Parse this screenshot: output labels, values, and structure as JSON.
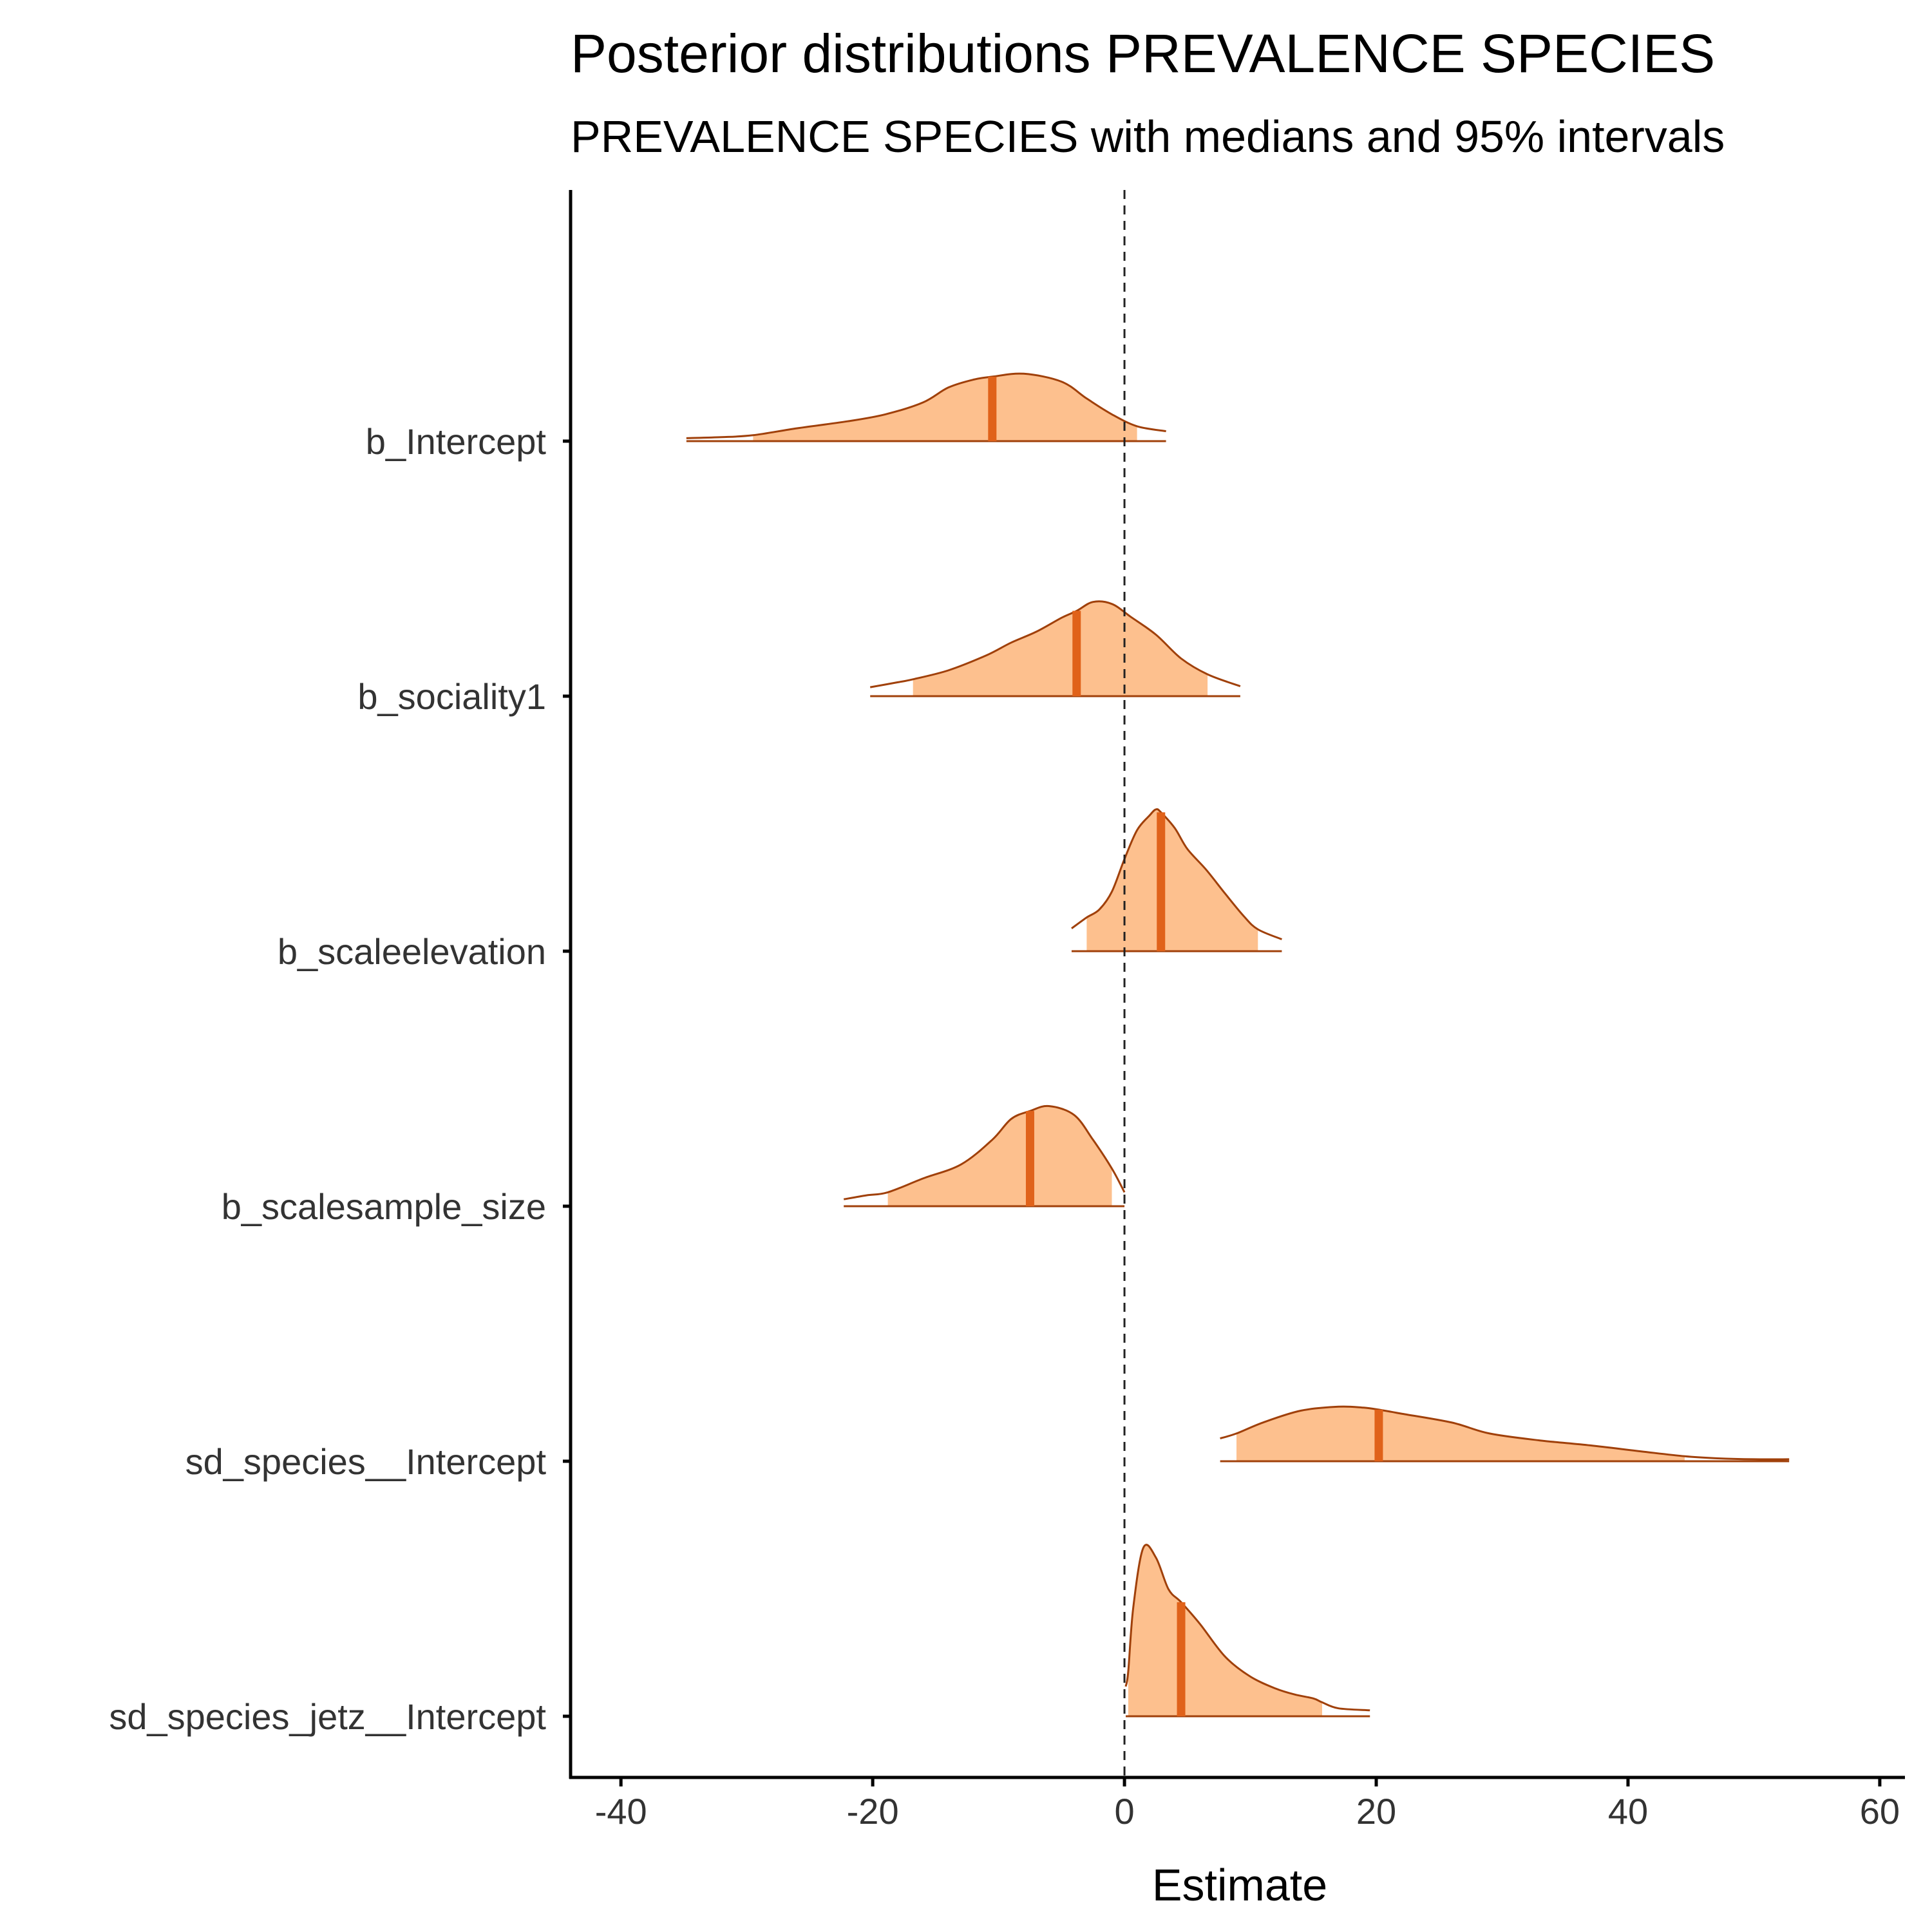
{
  "chart_data": {
    "type": "density_ridge",
    "title": "Posterior distributions PREVALENCE SPECIES",
    "subtitle": "PREVALENCE SPECIES with medians and 95% intervals",
    "xlabel": "Estimate",
    "ylabel": "",
    "xlim": [
      -44,
      62
    ],
    "xticks": [
      -40,
      -20,
      0,
      20,
      40,
      60
    ],
    "xtick_labels": [
      "-40",
      "-20",
      "0",
      "20",
      "40",
      "60"
    ],
    "reference_line_x": 0,
    "colors": {
      "fill": "#fdc08e",
      "outline": "#a0400a",
      "median": "#e0621a",
      "reference": "#222222",
      "axis": "#000000"
    },
    "parameters": [
      {
        "name": "b_Intercept",
        "median": -10.5,
        "ci95": [
          -29.5,
          1.0
        ],
        "range": [
          -34.8,
          3.3
        ],
        "density": [
          [
            -34.8,
            0.03
          ],
          [
            -32,
            0.04
          ],
          [
            -29.5,
            0.06
          ],
          [
            -26,
            0.13
          ],
          [
            -22,
            0.2
          ],
          [
            -19,
            0.27
          ],
          [
            -16,
            0.39
          ],
          [
            -14,
            0.54
          ],
          [
            -12,
            0.62
          ],
          [
            -10.5,
            0.65
          ],
          [
            -8,
            0.68
          ],
          [
            -5,
            0.6
          ],
          [
            -3,
            0.43
          ],
          [
            -1,
            0.27
          ],
          [
            1,
            0.15
          ],
          [
            3.3,
            0.1
          ]
        ]
      },
      {
        "name": "b_sociality1",
        "median": -3.8,
        "ci95": [
          -16.8,
          6.6
        ],
        "range": [
          -20.2,
          9.2
        ],
        "density": [
          [
            -20.2,
            0.09
          ],
          [
            -18,
            0.14
          ],
          [
            -16.8,
            0.17
          ],
          [
            -14,
            0.26
          ],
          [
            -11,
            0.41
          ],
          [
            -9,
            0.54
          ],
          [
            -7,
            0.65
          ],
          [
            -5,
            0.79
          ],
          [
            -3.8,
            0.86
          ],
          [
            -2.5,
            0.95
          ],
          [
            -1,
            0.93
          ],
          [
            0.5,
            0.8
          ],
          [
            2.5,
            0.62
          ],
          [
            4.5,
            0.38
          ],
          [
            6.6,
            0.22
          ],
          [
            9.2,
            0.1
          ]
        ]
      },
      {
        "name": "b_scaleelevation",
        "median": 2.9,
        "ci95": [
          -3.0,
          10.6
        ],
        "range": [
          -4.2,
          12.5
        ],
        "density": [
          [
            -4.2,
            0.23
          ],
          [
            -3,
            0.34
          ],
          [
            -2,
            0.42
          ],
          [
            -1,
            0.6
          ],
          [
            0,
            0.93
          ],
          [
            1,
            1.22
          ],
          [
            2,
            1.37
          ],
          [
            2.5,
            1.43
          ],
          [
            2.9,
            1.4
          ],
          [
            4,
            1.24
          ],
          [
            5,
            1.03
          ],
          [
            6.5,
            0.82
          ],
          [
            8,
            0.58
          ],
          [
            9.5,
            0.35
          ],
          [
            10.6,
            0.22
          ],
          [
            12.5,
            0.12
          ]
        ]
      },
      {
        "name": "b_scalesample_size",
        "median": -7.5,
        "ci95": [
          -18.8,
          -1.0
        ],
        "range": [
          -22.3,
          0.0
        ],
        "density": [
          [
            -22.3,
            0.07
          ],
          [
            -20.5,
            0.11
          ],
          [
            -18.8,
            0.14
          ],
          [
            -16,
            0.28
          ],
          [
            -13,
            0.42
          ],
          [
            -10.5,
            0.67
          ],
          [
            -9,
            0.88
          ],
          [
            -7.5,
            0.96
          ],
          [
            -6,
            1.01
          ],
          [
            -4,
            0.92
          ],
          [
            -2.5,
            0.67
          ],
          [
            -1,
            0.38
          ],
          [
            0,
            0.14
          ]
        ]
      },
      {
        "name": "sd_species__Intercept",
        "median": 20.2,
        "ci95": [
          8.9,
          44.5
        ],
        "range": [
          7.6,
          52.8
        ],
        "density": [
          [
            7.6,
            0.23
          ],
          [
            8.9,
            0.28
          ],
          [
            11,
            0.39
          ],
          [
            14,
            0.51
          ],
          [
            17,
            0.55
          ],
          [
            19,
            0.54
          ],
          [
            20.2,
            0.52
          ],
          [
            22,
            0.48
          ],
          [
            26,
            0.39
          ],
          [
            29,
            0.28
          ],
          [
            33,
            0.21
          ],
          [
            37,
            0.16
          ],
          [
            41,
            0.1
          ],
          [
            44.5,
            0.05
          ],
          [
            47,
            0.03
          ],
          [
            50,
            0.02
          ],
          [
            52.8,
            0.02
          ]
        ]
      },
      {
        "name": "sd_species_jetz__Intercept",
        "median": 4.5,
        "ci95": [
          0.3,
          15.7
        ],
        "range": [
          0.1,
          19.5
        ],
        "density": [
          [
            0.1,
            0.3
          ],
          [
            0.3,
            0.45
          ],
          [
            0.7,
            1.1
          ],
          [
            1.5,
            1.7
          ],
          [
            2.5,
            1.6
          ],
          [
            3.5,
            1.28
          ],
          [
            4.5,
            1.15
          ],
          [
            6,
            0.93
          ],
          [
            8,
            0.6
          ],
          [
            10,
            0.4
          ],
          [
            12,
            0.28
          ],
          [
            13.5,
            0.22
          ],
          [
            15,
            0.18
          ],
          [
            15.7,
            0.14
          ],
          [
            17,
            0.08
          ],
          [
            19.5,
            0.06
          ]
        ]
      }
    ]
  }
}
